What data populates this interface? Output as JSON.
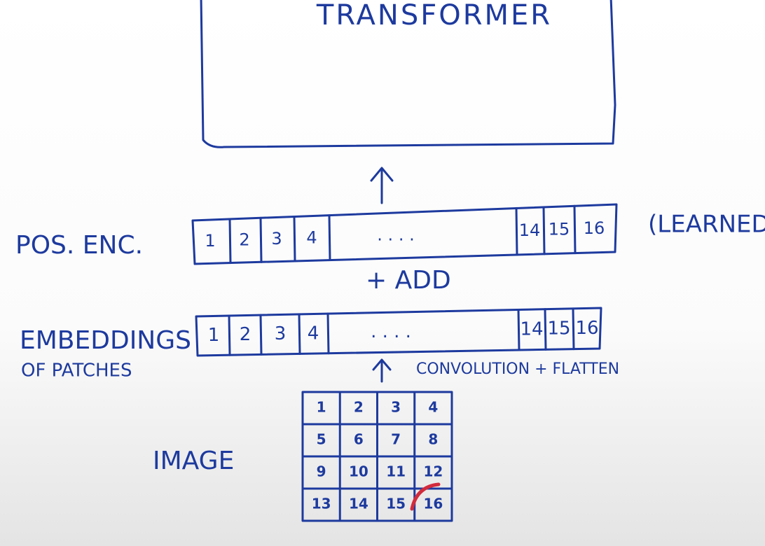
{
  "transformer": {
    "label": "TRANSFORMER"
  },
  "pos_enc": {
    "label": "POS. ENC.",
    "note": "(LEARNED,",
    "cells": [
      "1",
      "2",
      "3",
      "4",
      ". . . .",
      "14",
      "15",
      "16"
    ]
  },
  "add": {
    "label": "+ ADD"
  },
  "embeddings": {
    "label": "EMBEDDINGS",
    "sublabel": "OF PATCHES",
    "cells": [
      "1",
      "2",
      "3",
      "4",
      ". . . .",
      "14",
      "15",
      "16"
    ]
  },
  "convolution": {
    "label": "CONVOLUTION + FLATTEN"
  },
  "image": {
    "label": "IMAGE",
    "grid": [
      [
        "1",
        "2",
        "3",
        "4"
      ],
      [
        "5",
        "6",
        "7",
        "8"
      ],
      [
        "9",
        "10",
        "11",
        "12"
      ],
      [
        "13",
        "14",
        "15",
        "16"
      ]
    ]
  }
}
